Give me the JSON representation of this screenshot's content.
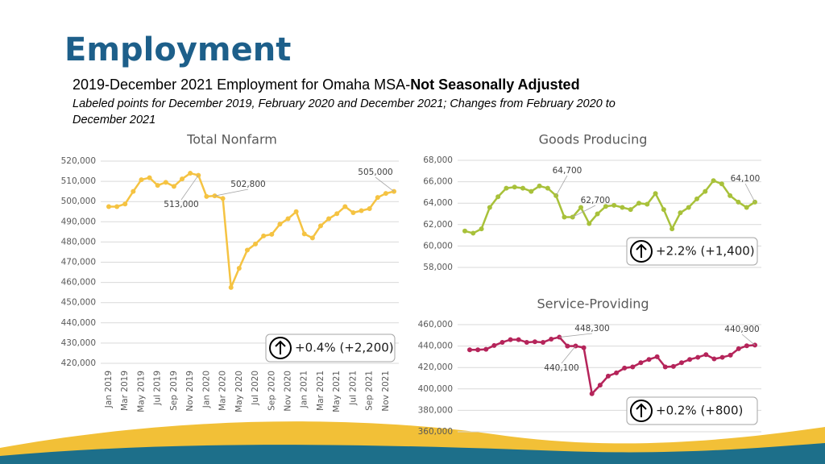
{
  "slide": {
    "title": "Employment",
    "subtitle": "2019-December 2021 Employment for Omaha MSA-",
    "subtitle_bold": "Not Seasonally Adjusted",
    "note_line1": "Labeled points for December 2019, February 2020 and December 2021; Changes from February 2020 to",
    "note_line2": "December 2021"
  },
  "chart_data": [
    {
      "type": "line",
      "title": "Total Nonfarm",
      "color": "#f5c342",
      "categories": [
        "Jan 2019",
        null,
        "Mar 2019",
        null,
        "May 2019",
        null,
        "Jul 2019",
        null,
        "Sep 2019",
        null,
        "Nov 2019",
        null,
        "Jan 2020",
        null,
        "Mar 2020",
        null,
        "May 2020",
        null,
        "Jul 2020",
        null,
        "Sep 2020",
        null,
        "Nov 2020",
        null,
        "Jan 2021",
        null,
        "Mar 2021",
        null,
        "May 2021",
        null,
        "Jul 2021",
        null,
        "Sep 2021",
        null,
        "Nov 2021",
        null
      ],
      "values": [
        497500,
        497500,
        498800,
        505000,
        510800,
        511800,
        508000,
        509500,
        507500,
        511200,
        514000,
        513000,
        502500,
        502800,
        501500,
        457500,
        467000,
        476000,
        479000,
        483000,
        483800,
        488800,
        491500,
        495000,
        484000,
        482000,
        488000,
        491500,
        494000,
        497500,
        494500,
        495500,
        496500,
        502000,
        504000,
        505000
      ],
      "value_labels": [
        null,
        null,
        null,
        null,
        null,
        null,
        null,
        null,
        null,
        null,
        null,
        "513,000",
        null,
        "502,800",
        null,
        null,
        null,
        null,
        null,
        null,
        null,
        null,
        null,
        null,
        null,
        null,
        null,
        null,
        null,
        null,
        null,
        null,
        null,
        null,
        null,
        "505,000"
      ],
      "ylim": [
        420000,
        520000
      ],
      "yticks": [
        {
          "value": 420000,
          "label": "420,000"
        },
        {
          "value": 430000,
          "label": "430,000"
        },
        {
          "value": 440000,
          "label": "440,000"
        },
        {
          "value": 450000,
          "label": "450,000"
        },
        {
          "value": 460000,
          "label": "460,000"
        },
        {
          "value": 470000,
          "label": "470,000"
        },
        {
          "value": 480000,
          "label": "480,000"
        },
        {
          "value": 490000,
          "label": "490,000"
        },
        {
          "value": 500000,
          "label": "500,000"
        },
        {
          "value": 510000,
          "label": "510,000"
        },
        {
          "value": 520000,
          "label": "520,000"
        }
      ],
      "grid": true,
      "annotation": "+0.4% (+2,200)"
    },
    {
      "type": "line",
      "title": "Goods Producing",
      "color": "#a8c13a",
      "values": [
        61400,
        61200,
        61600,
        63600,
        64600,
        65400,
        65500,
        65400,
        65100,
        65600,
        65400,
        64700,
        62700,
        62700,
        63600,
        62100,
        63000,
        63700,
        63800,
        63600,
        63400,
        64000,
        63900,
        64900,
        63400,
        61600,
        63100,
        63600,
        64400,
        65100,
        66100,
        65800,
        64700,
        64100,
        63600,
        64100
      ],
      "value_labels": [
        null,
        null,
        null,
        null,
        null,
        null,
        null,
        null,
        null,
        null,
        null,
        "64,700",
        null,
        "62,700",
        null,
        null,
        null,
        null,
        null,
        null,
        null,
        null,
        null,
        null,
        null,
        null,
        null,
        null,
        null,
        null,
        null,
        null,
        null,
        null,
        null,
        "64,100"
      ],
      "ylim": [
        58000,
        68000
      ],
      "yticks": [
        {
          "value": 58000,
          "label": "58,000"
        },
        {
          "value": 60000,
          "label": "60,000"
        },
        {
          "value": 62000,
          "label": "62,000"
        },
        {
          "value": 64000,
          "label": "64,000"
        },
        {
          "value": 66000,
          "label": "66,000"
        },
        {
          "value": 68000,
          "label": "68,000"
        }
      ],
      "grid": true,
      "annotation": "+2.2% (+1,400)"
    },
    {
      "type": "line",
      "title": "Service-Providing",
      "color": "#b5245a",
      "values": [
        436500,
        436500,
        437000,
        440500,
        443500,
        446000,
        446000,
        443500,
        444000,
        443500,
        446500,
        448300,
        440000,
        440100,
        438500,
        395500,
        403500,
        412000,
        415000,
        419500,
        420500,
        424500,
        427500,
        430000,
        420500,
        421000,
        424500,
        427500,
        429500,
        432000,
        428000,
        429500,
        431500,
        437500,
        440300,
        440900
      ],
      "value_labels": [
        null,
        null,
        null,
        null,
        null,
        null,
        null,
        null,
        null,
        null,
        null,
        "448,300",
        null,
        "440,100",
        null,
        null,
        null,
        null,
        null,
        null,
        null,
        null,
        null,
        null,
        null,
        null,
        null,
        null,
        null,
        null,
        null,
        null,
        null,
        null,
        null,
        "440,900"
      ],
      "ylim": [
        360000,
        460000
      ],
      "yticks": [
        {
          "value": 360000,
          "label": "360,000"
        },
        {
          "value": 380000,
          "label": "380,000"
        },
        {
          "value": 400000,
          "label": "400,000"
        },
        {
          "value": 420000,
          "label": "420,000"
        },
        {
          "value": 440000,
          "label": "440,000"
        },
        {
          "value": 460000,
          "label": "460,000"
        }
      ],
      "grid": true,
      "annotation": "+0.2% (+800)"
    }
  ]
}
